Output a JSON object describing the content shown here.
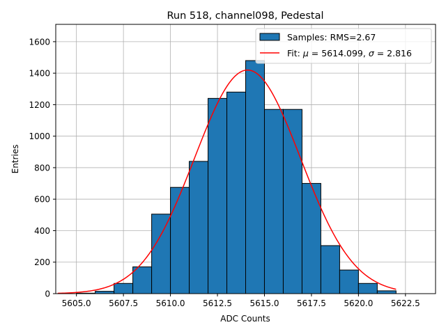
{
  "chart_data": {
    "type": "bar",
    "title": "Run 518, channel098, Pedestal",
    "xlabel": "ADC Counts",
    "ylabel": "Entries",
    "xlim": [
      5603.9,
      5624.1
    ],
    "ylim": [
      0,
      1710
    ],
    "grid": true,
    "legend_placement": "upper-right",
    "xticks": [
      5605.0,
      5607.5,
      5610.0,
      5612.5,
      5615.0,
      5617.5,
      5620.0,
      5622.5
    ],
    "xtick_labels": [
      "5605.0",
      "5607.5",
      "5610.0",
      "5612.5",
      "5615.0",
      "5617.5",
      "5620.0",
      "5622.5"
    ],
    "yticks": [
      0,
      200,
      400,
      600,
      800,
      1000,
      1200,
      1400,
      1600
    ],
    "ytick_labels": [
      "0",
      "200",
      "400",
      "600",
      "800",
      "1000",
      "1200",
      "1400",
      "1600"
    ],
    "bin_edges": [
      5605,
      5606,
      5607,
      5608,
      5609,
      5610,
      5611,
      5612,
      5613,
      5614,
      5615,
      5616,
      5617,
      5618,
      5619,
      5620,
      5621,
      5622
    ],
    "series": [
      {
        "name": "Samples: RMS=2.67",
        "kind": "histogram",
        "color": "#1f77b4",
        "edgecolor": "#000000",
        "values": [
          3,
          15,
          65,
          170,
          505,
          675,
          840,
          1240,
          1280,
          1480,
          1170,
          1170,
          700,
          305,
          150,
          65,
          18
        ]
      },
      {
        "name": "Fit: μ = 5614.099, σ = 2.816",
        "legend_prefix": "Fit: ",
        "legend_mu_symbol": "μ",
        "legend_mu_value": " = 5614.099, ",
        "legend_sigma_symbol": "σ",
        "legend_sigma_value": " = 2.816",
        "kind": "gaussian-fit",
        "color": "#ff0000",
        "mu": 5614.099,
        "sigma": 2.816,
        "amplitude": 1420,
        "x_range": [
          5604,
          5622
        ]
      }
    ]
  }
}
